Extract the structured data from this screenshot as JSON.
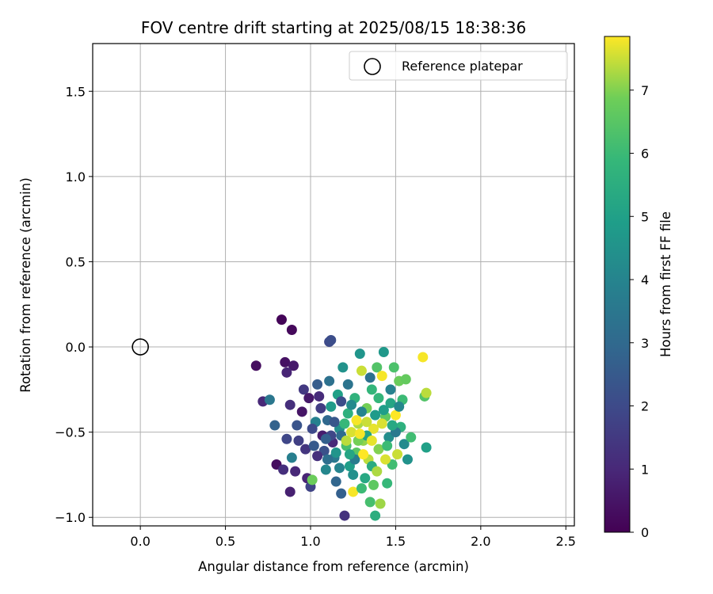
{
  "chart_data": {
    "type": "scatter",
    "title": "FOV centre drift starting at 2025/08/15 18:38:36",
    "xlabel": "Angular distance from reference (arcmin)",
    "ylabel": "Rotation from reference (arcmin)",
    "xlim": [
      -0.28,
      2.55
    ],
    "ylim": [
      -1.05,
      1.78
    ],
    "xticks": [
      0.0,
      0.5,
      1.0,
      1.5,
      2.0,
      2.5
    ],
    "xtick_labels": [
      "0.0",
      "0.5",
      "1.0",
      "1.5",
      "2.0",
      "2.5"
    ],
    "yticks": [
      -1.0,
      -0.5,
      0.0,
      0.5,
      1.0,
      1.5
    ],
    "ytick_labels": [
      "−1.0",
      "−0.5",
      "0.0",
      "0.5",
      "1.0",
      "1.5"
    ],
    "grid": true,
    "legend": {
      "position": "top-right",
      "entries": [
        {
          "label": "Reference platepar",
          "marker": "open-circle"
        }
      ]
    },
    "reference_point": {
      "x": 0.0,
      "y": 0.0
    },
    "colorbar": {
      "label": "Hours from first FF file",
      "range": [
        0,
        7.85
      ],
      "ticks": [
        0,
        1,
        2,
        3,
        4,
        5,
        6,
        7
      ],
      "tick_labels": [
        "0",
        "1",
        "2",
        "3",
        "4",
        "5",
        "6",
        "7"
      ],
      "colormap": "viridis"
    },
    "points": [
      [
        0.83,
        0.16,
        0.1
      ],
      [
        0.89,
        0.1,
        0.2
      ],
      [
        0.68,
        -0.11,
        0.3
      ],
      [
        0.85,
        -0.09,
        0.4
      ],
      [
        0.9,
        -0.11,
        0.6
      ],
      [
        1.11,
        0.03,
        2.0
      ],
      [
        1.12,
        0.04,
        2.1
      ],
      [
        0.72,
        -0.32,
        1.0
      ],
      [
        0.76,
        -0.31,
        3.5
      ],
      [
        0.79,
        -0.46,
        2.8
      ],
      [
        0.8,
        -0.69,
        0.3
      ],
      [
        0.84,
        -0.72,
        1.2
      ],
      [
        0.88,
        -0.85,
        0.8
      ],
      [
        0.89,
        -0.65,
        3.8
      ],
      [
        0.91,
        -0.73,
        1.0
      ],
      [
        0.86,
        -0.54,
        1.9
      ],
      [
        0.88,
        -0.34,
        1.2
      ],
      [
        0.86,
        -0.15,
        0.9
      ],
      [
        0.92,
        -0.46,
        2.3
      ],
      [
        0.95,
        -0.38,
        0.5
      ],
      [
        0.97,
        -0.6,
        1.4
      ],
      [
        0.98,
        -0.77,
        0.9
      ],
      [
        1.0,
        -0.82,
        1.8
      ],
      [
        1.01,
        -0.78,
        6.8
      ],
      [
        1.02,
        -0.58,
        2.5
      ],
      [
        1.03,
        -0.44,
        3.9
      ],
      [
        1.04,
        -0.22,
        2.6
      ],
      [
        1.05,
        -0.29,
        1.1
      ],
      [
        1.07,
        -0.52,
        0.7
      ],
      [
        1.08,
        -0.61,
        2.2
      ],
      [
        1.09,
        -0.72,
        4.1
      ],
      [
        1.1,
        -0.43,
        3.0
      ],
      [
        1.11,
        -0.2,
        3.3
      ],
      [
        1.12,
        -0.35,
        4.8
      ],
      [
        1.13,
        -0.56,
        1.0
      ],
      [
        1.14,
        -0.65,
        3.6
      ],
      [
        1.15,
        -0.79,
        2.9
      ],
      [
        1.16,
        -0.28,
        5.0
      ],
      [
        1.17,
        -0.48,
        4.4
      ],
      [
        1.18,
        -0.86,
        2.7
      ],
      [
        1.19,
        -0.12,
        4.5
      ],
      [
        1.2,
        -0.99,
        1.3
      ],
      [
        1.21,
        -0.58,
        6.2
      ],
      [
        1.22,
        -0.39,
        5.6
      ],
      [
        1.23,
        -0.7,
        4.9
      ],
      [
        1.24,
        -0.5,
        7.6
      ],
      [
        1.25,
        -0.85,
        7.8
      ],
      [
        1.26,
        -0.3,
        5.7
      ],
      [
        1.27,
        -0.62,
        6.5
      ],
      [
        1.28,
        -0.45,
        7.3
      ],
      [
        1.29,
        -0.04,
        4.6
      ],
      [
        1.3,
        -0.14,
        7.5
      ],
      [
        1.31,
        -0.55,
        7.1
      ],
      [
        1.32,
        -0.77,
        5.3
      ],
      [
        1.33,
        -0.36,
        6.9
      ],
      [
        1.34,
        -0.66,
        7.4
      ],
      [
        1.35,
        -0.91,
        6.2
      ],
      [
        1.36,
        -0.25,
        5.8
      ],
      [
        1.37,
        -0.48,
        7.7
      ],
      [
        1.38,
        -0.99,
        5.5
      ],
      [
        1.39,
        -0.12,
        6.4
      ],
      [
        1.4,
        -0.6,
        7.0
      ],
      [
        1.41,
        -0.92,
        7.2
      ],
      [
        1.42,
        -0.17,
        7.8
      ],
      [
        1.43,
        -0.03,
        4.7
      ],
      [
        1.44,
        -0.41,
        6.6
      ],
      [
        1.45,
        -0.8,
        5.9
      ],
      [
        1.46,
        -0.53,
        4.3
      ],
      [
        1.47,
        -0.33,
        5.2
      ],
      [
        1.48,
        -0.69,
        6.1
      ],
      [
        1.49,
        -0.12,
        6.3
      ],
      [
        1.5,
        -0.4,
        7.9
      ],
      [
        1.51,
        -0.63,
        7.5
      ],
      [
        1.52,
        -0.2,
        6.8
      ],
      [
        1.53,
        -0.47,
        5.6
      ],
      [
        1.54,
        -0.31,
        6.0
      ],
      [
        1.55,
        -0.57,
        4.2
      ],
      [
        1.56,
        -0.19,
        6.7
      ],
      [
        1.57,
        -0.66,
        4.5
      ],
      [
        1.59,
        -0.53,
        6.1
      ],
      [
        1.66,
        -0.06,
        7.8
      ],
      [
        1.67,
        -0.29,
        6.4
      ],
      [
        1.68,
        -0.27,
        7.4
      ],
      [
        1.68,
        -0.59,
        5.0
      ],
      [
        1.18,
        -0.52,
        3.1
      ],
      [
        1.22,
        -0.22,
        3.4
      ],
      [
        1.26,
        -0.66,
        3.7
      ],
      [
        1.3,
        -0.38,
        4.0
      ],
      [
        1.14,
        -0.44,
        2.4
      ],
      [
        1.06,
        -0.36,
        1.6
      ],
      [
        1.1,
        -0.66,
        3.2
      ],
      [
        0.96,
        -0.25,
        1.5
      ],
      [
        1.01,
        -0.48,
        2.0
      ],
      [
        1.15,
        -0.62,
        4.6
      ],
      [
        1.24,
        -0.34,
        4.2
      ],
      [
        1.33,
        -0.52,
        5.1
      ],
      [
        1.36,
        -0.7,
        5.4
      ],
      [
        1.4,
        -0.3,
        5.8
      ],
      [
        1.45,
        -0.58,
        6.0
      ],
      [
        1.42,
        -0.45,
        7.6
      ],
      [
        1.28,
        -0.55,
        6.9
      ],
      [
        1.2,
        -0.45,
        5.9
      ],
      [
        1.38,
        -0.4,
        4.8
      ],
      [
        1.47,
        -0.25,
        3.9
      ],
      [
        1.5,
        -0.5,
        3.6
      ],
      [
        1.35,
        -0.18,
        3.3
      ],
      [
        1.25,
        -0.75,
        4.4
      ],
      [
        1.18,
        -0.32,
        2.1
      ],
      [
        1.12,
        -0.52,
        1.9
      ],
      [
        1.04,
        -0.64,
        1.2
      ],
      [
        0.99,
        -0.3,
        0.6
      ],
      [
        0.93,
        -0.55,
        1.7
      ],
      [
        1.27,
        -0.43,
        7.8
      ],
      [
        1.31,
        -0.63,
        7.9
      ],
      [
        1.36,
        -0.55,
        7.7
      ],
      [
        1.44,
        -0.66,
        7.6
      ],
      [
        1.21,
        -0.55,
        7.4
      ],
      [
        1.29,
        -0.51,
        7.8
      ],
      [
        1.33,
        -0.44,
        7.5
      ],
      [
        1.39,
        -0.73,
        7.3
      ],
      [
        1.52,
        -0.35,
        4.1
      ],
      [
        1.48,
        -0.46,
        5.3
      ],
      [
        1.43,
        -0.37,
        4.9
      ],
      [
        1.37,
        -0.81,
        6.6
      ],
      [
        1.3,
        -0.83,
        6.0
      ],
      [
        1.23,
        -0.63,
        5.2
      ],
      [
        1.17,
        -0.71,
        4.0
      ],
      [
        1.09,
        -0.54,
        2.7
      ]
    ]
  }
}
